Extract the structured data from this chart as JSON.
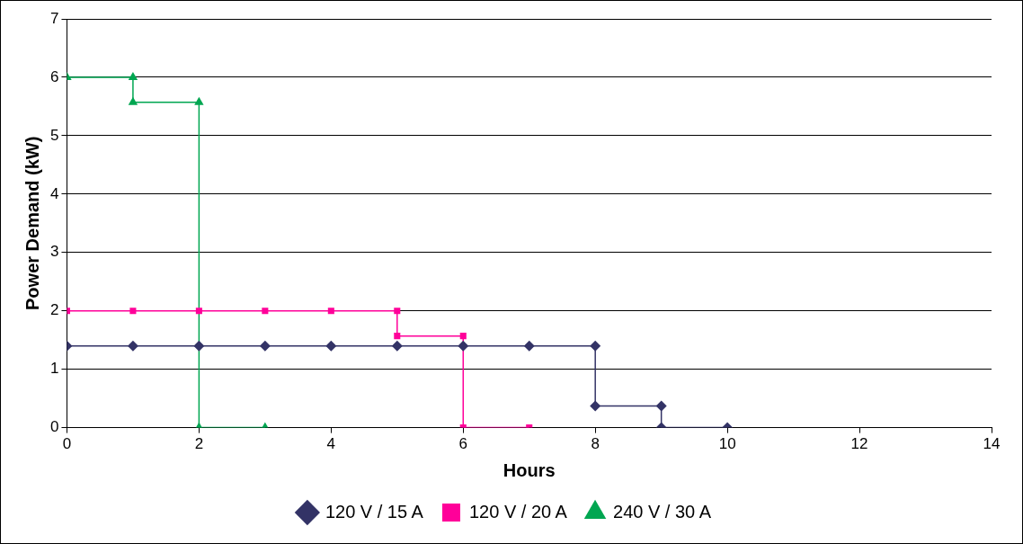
{
  "chart_data": {
    "type": "line",
    "xlabel": "Hours",
    "ylabel": "Power Demand (kW)",
    "xlim": [
      0,
      14
    ],
    "xticks": [
      0,
      2,
      4,
      6,
      8,
      10,
      12,
      14
    ],
    "ylim": [
      0,
      7
    ],
    "yticks": [
      0,
      1,
      2,
      3,
      4,
      5,
      6,
      7
    ],
    "grid": "y",
    "legend": "bottom",
    "line_style": "solid",
    "series": [
      {
        "name": "120 V / 15 A",
        "color": "#333366",
        "marker": "diamond",
        "x": [
          0,
          1,
          2,
          3,
          4,
          5,
          6,
          7,
          8,
          8,
          9,
          9,
          10
        ],
        "values": [
          1.4,
          1.4,
          1.4,
          1.4,
          1.4,
          1.4,
          1.4,
          1.4,
          1.4,
          0.37,
          0.37,
          0,
          0
        ]
      },
      {
        "name": "120 V / 20 A",
        "color": "#ff0099",
        "marker": "square",
        "x": [
          0,
          1,
          2,
          3,
          4,
          5,
          5,
          6,
          6,
          7
        ],
        "values": [
          2,
          2,
          2,
          2,
          2,
          2,
          1.57,
          1.57,
          0,
          0
        ]
      },
      {
        "name": "240 V / 30 A",
        "color": "#00a651",
        "marker": "triangle",
        "x": [
          0,
          1,
          1,
          2,
          2,
          3
        ],
        "values": [
          6,
          6,
          5.57,
          5.57,
          0,
          0
        ]
      }
    ]
  }
}
